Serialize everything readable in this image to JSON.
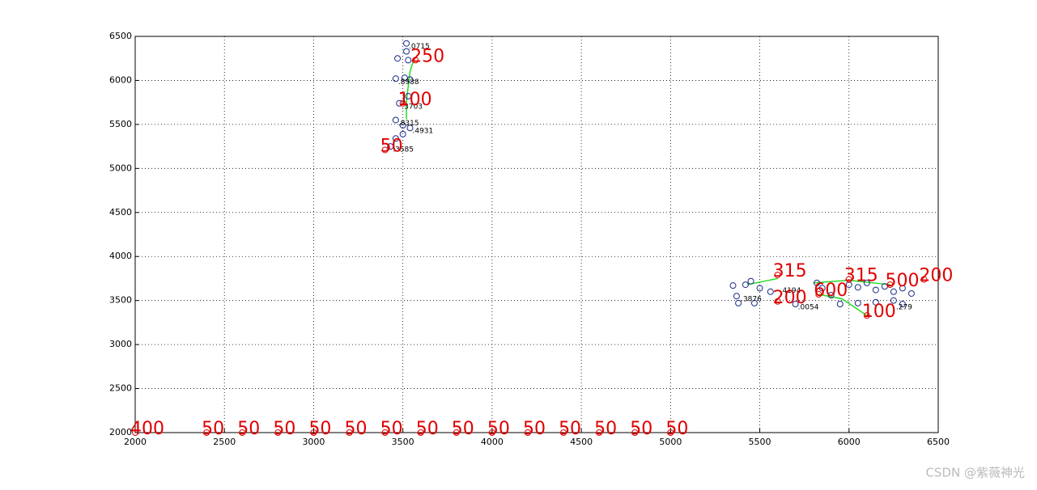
{
  "chart_data": {
    "type": "scatter",
    "xlim": [
      2000,
      6500
    ],
    "ylim": [
      2000,
      6500
    ],
    "xticks": [
      2000,
      2500,
      3000,
      3500,
      4000,
      4500,
      5000,
      5500,
      6000,
      6500
    ],
    "yticks": [
      2000,
      2500,
      3000,
      3500,
      4000,
      4500,
      5000,
      5500,
      6000,
      6500
    ],
    "grid": true,
    "points": {
      "color": "#1a2a8a",
      "x": [
        3520,
        3520,
        3470,
        3530,
        3460,
        3510,
        3540,
        3530,
        3480,
        3460,
        3500,
        3540,
        3500,
        3460,
        3430,
        5350,
        5420,
        5450,
        5500,
        5370,
        5380,
        5470,
        5560,
        5700,
        5820,
        5850,
        5900,
        5950,
        6000,
        6050,
        6100,
        6150,
        6200,
        6250,
        6300,
        6350,
        6050,
        6150,
        6250,
        6300
      ],
      "y": [
        6420,
        6330,
        6250,
        6230,
        6020,
        6030,
        6010,
        5820,
        5740,
        5550,
        5490,
        5460,
        5390,
        5340,
        5250,
        3670,
        3680,
        3720,
        3640,
        3550,
        3470,
        3470,
        3600,
        3460,
        3700,
        3640,
        3560,
        3460,
        3680,
        3650,
        3700,
        3620,
        3660,
        3600,
        3640,
        3580,
        3470,
        3480,
        3500,
        3460
      ]
    },
    "small_labels": {
      "color": "#000000",
      "texts": [
        ".0715",
        ".8938",
        ".3703",
        ".8315",
        ".4931",
        ".3585",
        ".0054",
        ".279",
        ".3876",
        ".4194"
      ],
      "x": [
        3520,
        3460,
        3480,
        3460,
        3540,
        3430,
        5700,
        6250,
        5380,
        5600
      ],
      "y": [
        6420,
        6020,
        5740,
        5550,
        5460,
        5250,
        3460,
        3460,
        3550,
        3650
      ]
    },
    "red_labels": {
      "color": "#e00000",
      "texts": [
        "400",
        "50",
        "50",
        "50",
        "50",
        "50",
        "50",
        "50",
        "50",
        "50",
        "50",
        "50",
        "50",
        "50",
        "50",
        "250",
        "100",
        "50",
        "315",
        "315",
        "200",
        "500",
        "200",
        "600",
        "100"
      ],
      "x": [
        2000,
        2400,
        2600,
        2800,
        3000,
        3200,
        3400,
        3600,
        3800,
        4000,
        4200,
        4400,
        4600,
        4800,
        5000,
        3570,
        3500,
        3400,
        5600,
        6000,
        6420,
        6230,
        5600,
        5830,
        6100
      ],
      "y": [
        2000,
        2000,
        2000,
        2000,
        2000,
        2000,
        2000,
        2000,
        2000,
        2000,
        2000,
        2000,
        2000,
        2000,
        2000,
        6230,
        5740,
        5210,
        3790,
        3740,
        3740,
        3680,
        3490,
        3570,
        3330
      ]
    },
    "lines": {
      "color": "#22dd22",
      "series": [
        {
          "x": [
            3520,
            3520,
            3540,
            3560
          ],
          "y": [
            5560,
            5760,
            6100,
            6230
          ]
        },
        {
          "x": [
            5430,
            5600
          ],
          "y": [
            3680,
            3750
          ]
        },
        {
          "x": [
            5800,
            6000,
            6230
          ],
          "y": [
            3700,
            3730,
            3680
          ]
        },
        {
          "x": [
            5830,
            5960,
            6100
          ],
          "y": [
            3570,
            3520,
            3330
          ]
        }
      ]
    },
    "watermark": "CSDN @紫薇神光"
  }
}
